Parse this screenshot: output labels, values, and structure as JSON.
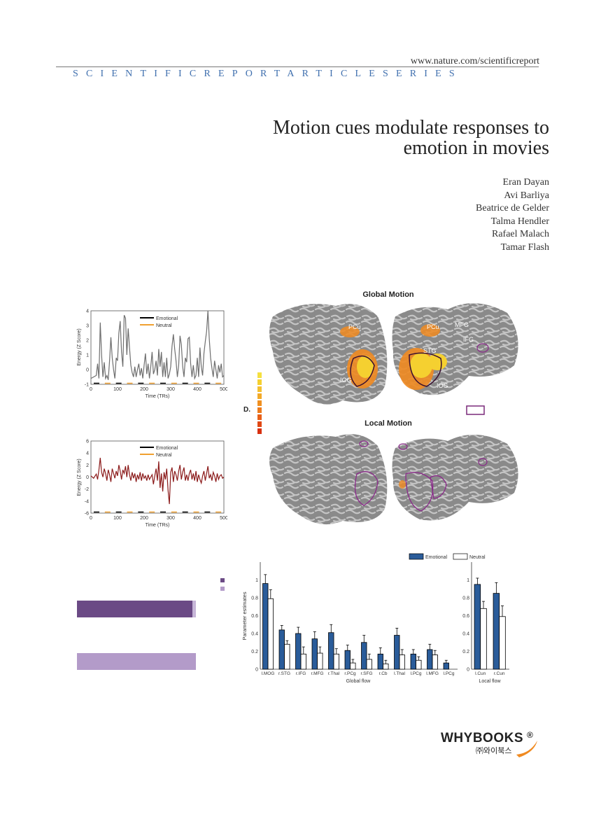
{
  "header": {
    "url": "www.nature.com/scientificreport",
    "series": "SCIENTIFICREPORTARTICLESERIES"
  },
  "paper": {
    "title_line1": "Motion cues modulate responses to",
    "title_line2": "emotion in movies",
    "authors": [
      "Eran Dayan",
      "Avi Barliya",
      "Beatrice de Gelder",
      "Talma Hendler",
      "Rafael Malach",
      "Tamar Flash"
    ]
  },
  "figure": {
    "global_motion_label": "Global Motion",
    "local_motion_label": "Local Motion",
    "panel_d_label": "D.",
    "region_labels_global": [
      "PCu",
      "PCu",
      "MFG",
      "IFG",
      "STG",
      "IOG",
      "IOG"
    ]
  },
  "chart_data": [
    {
      "type": "line",
      "xlabel": "Time (TRs)",
      "ylabel": "Energy (Z Score)",
      "xlim": [
        0,
        500
      ],
      "ylim": [
        -1,
        4
      ],
      "xticks": [
        "0",
        "100",
        "200",
        "300",
        "400",
        "500"
      ],
      "yticks": [
        "-1",
        "0",
        "1",
        "2",
        "3",
        "4"
      ],
      "legend": [
        "Emotional",
        "Neutral"
      ],
      "series": [
        {
          "color": "#6e6e6e",
          "x": [
            0,
            10,
            20,
            25,
            30,
            35,
            40,
            45,
            50,
            55,
            60,
            65,
            70,
            75,
            80,
            85,
            90,
            95,
            100,
            105,
            110,
            115,
            120,
            125,
            130,
            135,
            140,
            145,
            150,
            155,
            160,
            165,
            170,
            175,
            180,
            185,
            190,
            195,
            200,
            205,
            210,
            215,
            220,
            225,
            230,
            235,
            240,
            245,
            250,
            255,
            260,
            265,
            270,
            275,
            280,
            285,
            290,
            295,
            300,
            305,
            310,
            315,
            320,
            325,
            330,
            335,
            340,
            345,
            350,
            355,
            360,
            365,
            370,
            375,
            380,
            385,
            390,
            395,
            400,
            405,
            410,
            415,
            420,
            425,
            430,
            435,
            440,
            445,
            450,
            455,
            460,
            465,
            470,
            475,
            480,
            485,
            490,
            495,
            500
          ],
          "y": [
            -0.6,
            -0.5,
            -0.4,
            0.4,
            -0.6,
            3.2,
            1.0,
            -0.5,
            0.5,
            -0.6,
            -0.4,
            -0.7,
            0.6,
            2.2,
            0.8,
            0.0,
            -0.6,
            0.8,
            0.6,
            2.5,
            3.3,
            1.2,
            0.2,
            3.7,
            3.5,
            1.0,
            2.8,
            1.5,
            0.3,
            -0.2,
            -0.5,
            0.2,
            -0.5,
            0.0,
            0.4,
            -0.4,
            0.1,
            -0.6,
            0.3,
            1.1,
            -0.3,
            0.4,
            -0.6,
            0.2,
            1.2,
            -0.3,
            0.0,
            0.6,
            -0.4,
            1.4,
            0.2,
            1.2,
            -0.5,
            0.5,
            -0.5,
            0.8,
            -0.6,
            -0.3,
            0.2,
            1.6,
            2.4,
            1.4,
            0.6,
            -0.5,
            0.3,
            2.3,
            1.7,
            0.2,
            -0.5,
            0.8,
            0.5,
            2.1,
            2.2,
            0.4,
            -0.5,
            0.3,
            -0.6,
            -0.4,
            0.8,
            -0.5,
            1.5,
            0.2,
            -0.4,
            1.1,
            1.9,
            2.6,
            4.0,
            2.1,
            0.8,
            0.1,
            -0.5,
            0.6,
            0.0,
            -0.6,
            0.3,
            -0.2,
            0.4,
            -0.5,
            -0.4
          ]
        }
      ]
    },
    {
      "type": "line",
      "xlabel": "Time (TRs)",
      "ylabel": "Energy (Z Score)",
      "xlim": [
        0,
        500
      ],
      "ylim": [
        -6,
        6
      ],
      "xticks": [
        "0",
        "100",
        "200",
        "300",
        "400",
        "500"
      ],
      "yticks": [
        "-6",
        "-4",
        "-2",
        "0",
        "2",
        "4",
        "6"
      ],
      "legend": [
        "Emotional",
        "Neutral"
      ],
      "series": [
        {
          "color": "#8b1a1a",
          "x": [
            0,
            10,
            20,
            25,
            30,
            35,
            40,
            45,
            50,
            55,
            60,
            65,
            70,
            75,
            80,
            85,
            90,
            95,
            100,
            105,
            110,
            115,
            120,
            125,
            130,
            135,
            140,
            145,
            150,
            155,
            160,
            165,
            170,
            175,
            180,
            185,
            190,
            195,
            200,
            205,
            210,
            215,
            220,
            225,
            230,
            235,
            240,
            245,
            250,
            255,
            260,
            265,
            270,
            275,
            280,
            285,
            290,
            295,
            300,
            305,
            310,
            315,
            320,
            325,
            330,
            335,
            340,
            345,
            350,
            355,
            360,
            365,
            370,
            375,
            380,
            385,
            390,
            395,
            400,
            405,
            410,
            415,
            420,
            425,
            430,
            435,
            440,
            445,
            450,
            455,
            460,
            465,
            470,
            475,
            480,
            485,
            490,
            495,
            500
          ],
          "y": [
            0.2,
            -0.2,
            0.5,
            -0.4,
            1.2,
            3.2,
            0.8,
            0.0,
            1.4,
            0.6,
            -0.6,
            1.2,
            0.4,
            -0.8,
            1.4,
            0.6,
            -0.2,
            1.0,
            0.2,
            2.0,
            1.0,
            -0.4,
            1.2,
            0.6,
            1.8,
            0.0,
            2.0,
            0.4,
            -0.6,
            0.8,
            -0.2,
            0.6,
            -0.8,
            0.4,
            -0.4,
            0.8,
            -0.6,
            0.6,
            -0.2,
            0.2,
            -0.6,
            0.4,
            -0.4,
            0.0,
            0.4,
            -1.2,
            0.2,
            1.4,
            -0.6,
            2.6,
            -1.8,
            0.6,
            -2.4,
            0.8,
            -0.4,
            1.4,
            -2.2,
            -4.5,
            0.8,
            1.6,
            -0.8,
            1.0,
            0.4,
            -0.6,
            1.0,
            2.0,
            -0.4,
            0.8,
            1.6,
            -0.6,
            0.4,
            -0.6,
            0.6,
            1.2,
            -0.4,
            0.6,
            -0.6,
            1.0,
            -0.8,
            0.4,
            -0.4,
            -1.0,
            0.2,
            1.0,
            -0.6,
            0.6,
            1.8,
            -0.2,
            0.4,
            -0.6,
            0.8,
            0.2,
            -0.8,
            0.6,
            -0.4,
            0.2,
            0.4,
            -0.2,
            0.0
          ]
        }
      ]
    },
    {
      "type": "bar",
      "xlabel": "Global flow",
      "ylabel": "Parameter estimates",
      "ylim": [
        0,
        1.2
      ],
      "yticks": [
        "0",
        "0.2",
        "0.4",
        "0.6",
        "0.8",
        "1"
      ],
      "categories": [
        "l.MOG",
        "r.STG",
        "r.IFG",
        "r.MFG",
        "r.Thal",
        "r.PCg",
        "r.SFG",
        "r.Cb",
        "l.Thal",
        "l.PCg",
        "l.MFG",
        "l.PCg"
      ],
      "series": [
        {
          "name": "Emotional",
          "color": "#2a5c9a",
          "values": [
            0.96,
            0.44,
            0.4,
            0.34,
            0.41,
            0.21,
            0.3,
            0.17,
            0.38,
            0.17,
            0.22,
            0.07
          ]
        },
        {
          "name": "Neutral",
          "color": "#ffffff",
          "values": [
            0.79,
            0.28,
            0.17,
            0.18,
            0.17,
            0.07,
            0.11,
            0.06,
            0.16,
            0.1,
            0.16,
            0.0
          ]
        }
      ],
      "errors": [
        [
          0.1,
          0.05,
          0.07,
          0.08,
          0.09,
          0.06,
          0.08,
          0.07,
          0.08,
          0.05,
          0.06,
          0.03
        ],
        [
          0.1,
          0.04,
          0.08,
          0.07,
          0.06,
          0.04,
          0.06,
          0.04,
          0.06,
          0.04,
          0.05,
          0.0
        ]
      ],
      "legend": [
        "Emotional",
        "Neutral"
      ]
    },
    {
      "type": "bar",
      "xlabel": "Local flow",
      "ylim": [
        0,
        1.2
      ],
      "yticks": [
        "0",
        "0.2",
        "0.4",
        "0.6",
        "0.8",
        "1"
      ],
      "categories": [
        "l.Cun",
        "r.Cun"
      ],
      "series": [
        {
          "name": "Emotional",
          "color": "#2a5c9a",
          "values": [
            0.95,
            0.85
          ]
        },
        {
          "name": "Neutral",
          "color": "#ffffff",
          "values": [
            0.68,
            0.59
          ]
        }
      ],
      "errors": [
        [
          0.07,
          0.12
        ],
        [
          0.08,
          0.12
        ]
      ]
    },
    {
      "type": "bar",
      "orientation": "horizontal",
      "values": [
        1.0,
        1.0
      ],
      "series": [
        {
          "color": "#6b4a85",
          "values": [
            1.0
          ]
        },
        {
          "color": "#b39bc9",
          "values": [
            1.0
          ]
        }
      ]
    }
  ],
  "publisher": {
    "name": "WHYBOOKS",
    "mark": "®",
    "korean": "㈜와이북스"
  }
}
